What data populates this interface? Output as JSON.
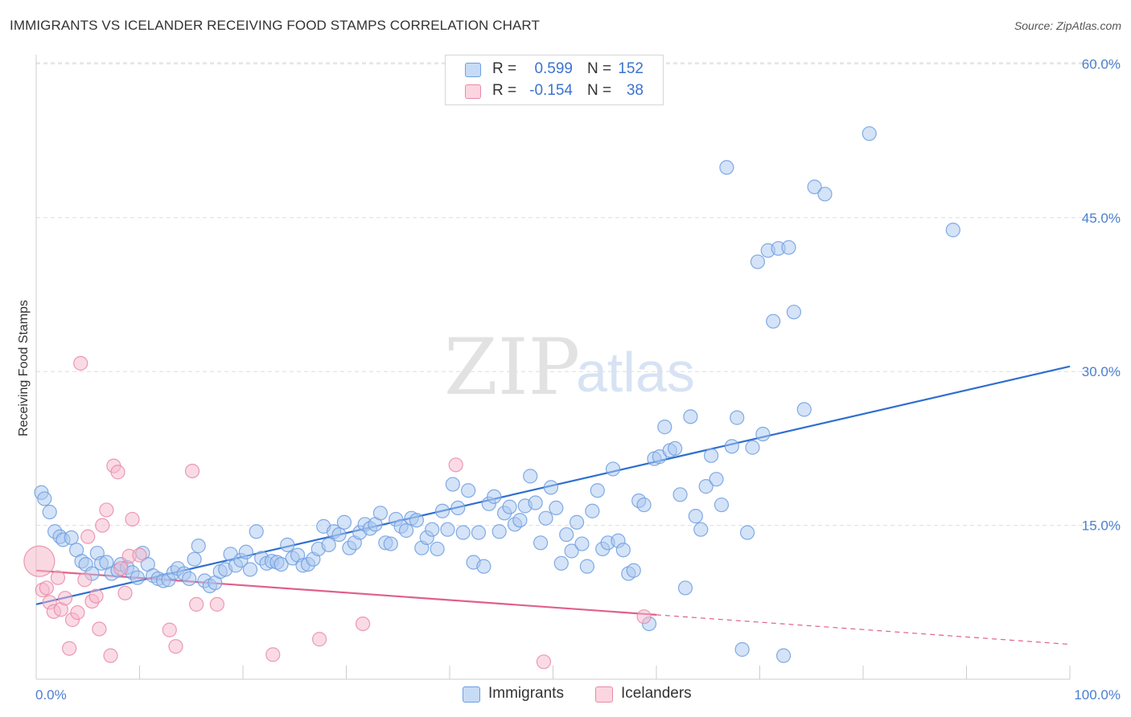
{
  "header": {
    "title": "IMMIGRANTS VS ICELANDER RECEIVING FOOD STAMPS CORRELATION CHART",
    "source": "Source: ZipAtlas.com"
  },
  "watermark": {
    "zip": "ZIP",
    "atlas": "atlas"
  },
  "legend": {
    "rows": [
      {
        "r_label": "R =",
        "r_value": "0.599",
        "n_label": "N =",
        "n_value": "152",
        "color": "#a9c7ef"
      },
      {
        "r_label": "R =",
        "r_value": "-0.154",
        "n_label": "N =",
        "n_value": "38",
        "color": "#f5b8cb"
      }
    ]
  },
  "bottom_legend": {
    "immigrants": "Immigrants",
    "icelanders": "Icelanders"
  },
  "colors": {
    "immigrants_fill": "#a9c7ef",
    "immigrants_stroke": "#6d9ee0",
    "immigrants_line": "#2f6fcf",
    "icelanders_fill": "#f5b8cb",
    "icelanders_stroke": "#e98aa8",
    "icelanders_line": "#e0608a",
    "grid": "#dedede",
    "axis_text": "#4a7fd0"
  },
  "chart_data": {
    "type": "scatter",
    "title": "IMMIGRANTS VS ICELANDER RECEIVING FOOD STAMPS CORRELATION CHART",
    "xlabel": "",
    "ylabel": "Receiving Food Stamps",
    "xlim": [
      0,
      100
    ],
    "ylim": [
      0,
      64
    ],
    "x_tick_labels": [
      "0.0%",
      "100.0%"
    ],
    "y_ticks": [
      15,
      30,
      45,
      60
    ],
    "y_tick_labels": [
      "15.0%",
      "30.0%",
      "45.0%",
      "60.0%"
    ],
    "grid": true,
    "legend_position": "top-center",
    "series": [
      {
        "name": "Immigrants",
        "r": 0.599,
        "n": 152,
        "trend": {
          "x": [
            0,
            100
          ],
          "y": [
            7.3,
            30.5
          ],
          "dashed_from": null
        },
        "points": [
          [
            0.5,
            18.2
          ],
          [
            0.8,
            17.6
          ],
          [
            1.3,
            16.3
          ],
          [
            1.8,
            14.4
          ],
          [
            2.3,
            13.9
          ],
          [
            2.6,
            13.6
          ],
          [
            3.4,
            13.8
          ],
          [
            3.9,
            12.6
          ],
          [
            4.4,
            11.5
          ],
          [
            4.8,
            11.2
          ],
          [
            5.4,
            10.3
          ],
          [
            5.9,
            12.3
          ],
          [
            6.3,
            11.3
          ],
          [
            6.8,
            11.4
          ],
          [
            7.3,
            10.3
          ],
          [
            7.9,
            10.6
          ],
          [
            8.2,
            11.2
          ],
          [
            8.8,
            10.9
          ],
          [
            9.3,
            10.4
          ],
          [
            9.8,
            9.9
          ],
          [
            10.3,
            12.3
          ],
          [
            10.8,
            11.2
          ],
          [
            11.3,
            10.1
          ],
          [
            11.8,
            9.8
          ],
          [
            12.3,
            9.6
          ],
          [
            12.8,
            9.7
          ],
          [
            13.3,
            10.4
          ],
          [
            13.7,
            10.8
          ],
          [
            14.3,
            10.3
          ],
          [
            14.8,
            9.8
          ],
          [
            15.3,
            11.7
          ],
          [
            15.7,
            13.0
          ],
          [
            16.3,
            9.6
          ],
          [
            16.8,
            9.1
          ],
          [
            17.3,
            9.4
          ],
          [
            17.8,
            10.5
          ],
          [
            18.3,
            10.7
          ],
          [
            18.8,
            12.2
          ],
          [
            19.3,
            11.1
          ],
          [
            19.8,
            11.6
          ],
          [
            20.3,
            12.4
          ],
          [
            20.7,
            10.7
          ],
          [
            21.3,
            14.4
          ],
          [
            21.8,
            11.8
          ],
          [
            22.3,
            11.3
          ],
          [
            22.8,
            11.5
          ],
          [
            23.3,
            11.4
          ],
          [
            23.7,
            11.2
          ],
          [
            24.3,
            13.1
          ],
          [
            24.8,
            11.8
          ],
          [
            25.3,
            12.1
          ],
          [
            25.8,
            11.1
          ],
          [
            26.3,
            11.2
          ],
          [
            26.8,
            11.7
          ],
          [
            27.3,
            12.7
          ],
          [
            27.8,
            14.9
          ],
          [
            28.3,
            13.1
          ],
          [
            28.8,
            14.4
          ],
          [
            29.3,
            14.1
          ],
          [
            29.8,
            15.3
          ],
          [
            30.3,
            12.8
          ],
          [
            30.8,
            13.3
          ],
          [
            31.3,
            14.3
          ],
          [
            31.8,
            15.1
          ],
          [
            32.3,
            14.7
          ],
          [
            32.8,
            15.1
          ],
          [
            33.3,
            16.2
          ],
          [
            33.8,
            13.3
          ],
          [
            34.3,
            13.2
          ],
          [
            34.8,
            15.6
          ],
          [
            35.3,
            14.9
          ],
          [
            35.8,
            14.5
          ],
          [
            36.3,
            15.7
          ],
          [
            36.8,
            15.5
          ],
          [
            37.3,
            12.8
          ],
          [
            37.8,
            13.8
          ],
          [
            38.3,
            14.6
          ],
          [
            38.8,
            12.7
          ],
          [
            39.3,
            16.4
          ],
          [
            39.8,
            14.6
          ],
          [
            40.3,
            19.0
          ],
          [
            40.8,
            16.7
          ],
          [
            41.3,
            14.3
          ],
          [
            41.8,
            18.4
          ],
          [
            42.3,
            11.4
          ],
          [
            42.8,
            14.3
          ],
          [
            43.3,
            11.0
          ],
          [
            43.8,
            17.1
          ],
          [
            44.3,
            17.8
          ],
          [
            44.8,
            14.4
          ],
          [
            45.3,
            16.2
          ],
          [
            45.8,
            16.8
          ],
          [
            46.3,
            15.1
          ],
          [
            46.8,
            15.5
          ],
          [
            47.3,
            16.9
          ],
          [
            47.8,
            19.8
          ],
          [
            48.3,
            17.2
          ],
          [
            48.8,
            13.3
          ],
          [
            49.3,
            15.7
          ],
          [
            49.8,
            18.7
          ],
          [
            50.3,
            16.7
          ],
          [
            50.8,
            11.3
          ],
          [
            51.3,
            14.1
          ],
          [
            51.8,
            12.5
          ],
          [
            52.3,
            15.3
          ],
          [
            52.8,
            13.2
          ],
          [
            53.3,
            11.0
          ],
          [
            53.8,
            16.4
          ],
          [
            54.3,
            18.4
          ],
          [
            54.8,
            12.7
          ],
          [
            55.3,
            13.3
          ],
          [
            55.8,
            20.5
          ],
          [
            56.3,
            13.5
          ],
          [
            56.8,
            12.6
          ],
          [
            57.3,
            10.3
          ],
          [
            57.8,
            10.6
          ],
          [
            58.3,
            17.4
          ],
          [
            58.8,
            17.0
          ],
          [
            59.3,
            5.4
          ],
          [
            59.8,
            21.5
          ],
          [
            60.3,
            21.7
          ],
          [
            60.8,
            24.6
          ],
          [
            61.3,
            22.3
          ],
          [
            61.8,
            22.5
          ],
          [
            62.3,
            18.0
          ],
          [
            62.8,
            8.9
          ],
          [
            63.3,
            25.6
          ],
          [
            63.8,
            15.9
          ],
          [
            64.3,
            14.6
          ],
          [
            64.8,
            18.8
          ],
          [
            65.3,
            21.8
          ],
          [
            65.8,
            19.5
          ],
          [
            66.3,
            17.0
          ],
          [
            66.8,
            49.9
          ],
          [
            67.3,
            22.7
          ],
          [
            67.8,
            25.5
          ],
          [
            68.3,
            2.9
          ],
          [
            68.8,
            14.3
          ],
          [
            69.3,
            22.6
          ],
          [
            69.8,
            40.7
          ],
          [
            70.3,
            23.9
          ],
          [
            70.8,
            41.8
          ],
          [
            71.3,
            34.9
          ],
          [
            71.8,
            42.0
          ],
          [
            72.3,
            2.3
          ],
          [
            72.8,
            42.1
          ],
          [
            73.3,
            35.8
          ],
          [
            74.3,
            26.3
          ],
          [
            75.3,
            48.0
          ],
          [
            76.3,
            47.3
          ],
          [
            80.6,
            53.2
          ],
          [
            88.7,
            43.8
          ]
        ]
      },
      {
        "name": "Icelanders",
        "r": -0.154,
        "n": 38,
        "trend": {
          "x": [
            0,
            100
          ],
          "y": [
            10.6,
            3.4
          ],
          "dashed_from": 60
        },
        "points": [
          [
            0.3,
            11.5
          ],
          [
            0.6,
            8.7
          ],
          [
            1.0,
            8.9
          ],
          [
            1.3,
            7.5
          ],
          [
            1.7,
            6.6
          ],
          [
            2.1,
            9.9
          ],
          [
            2.4,
            6.8
          ],
          [
            2.8,
            7.9
          ],
          [
            3.2,
            3.0
          ],
          [
            3.5,
            5.8
          ],
          [
            4.0,
            6.5
          ],
          [
            4.3,
            30.8
          ],
          [
            4.7,
            9.7
          ],
          [
            5.0,
            13.9
          ],
          [
            5.4,
            7.6
          ],
          [
            5.8,
            8.1
          ],
          [
            6.1,
            4.9
          ],
          [
            6.4,
            15.0
          ],
          [
            6.8,
            16.5
          ],
          [
            7.2,
            2.3
          ],
          [
            7.5,
            20.8
          ],
          [
            7.9,
            20.2
          ],
          [
            8.2,
            10.8
          ],
          [
            8.6,
            8.4
          ],
          [
            9.0,
            12.0
          ],
          [
            9.3,
            15.6
          ],
          [
            10.0,
            12.1
          ],
          [
            12.9,
            4.8
          ],
          [
            13.5,
            3.2
          ],
          [
            15.1,
            20.3
          ],
          [
            15.5,
            7.3
          ],
          [
            17.5,
            7.3
          ],
          [
            22.9,
            2.4
          ],
          [
            27.4,
            3.9
          ],
          [
            31.6,
            5.4
          ],
          [
            40.6,
            20.9
          ],
          [
            49.1,
            1.7
          ],
          [
            58.8,
            6.1
          ]
        ]
      }
    ]
  }
}
